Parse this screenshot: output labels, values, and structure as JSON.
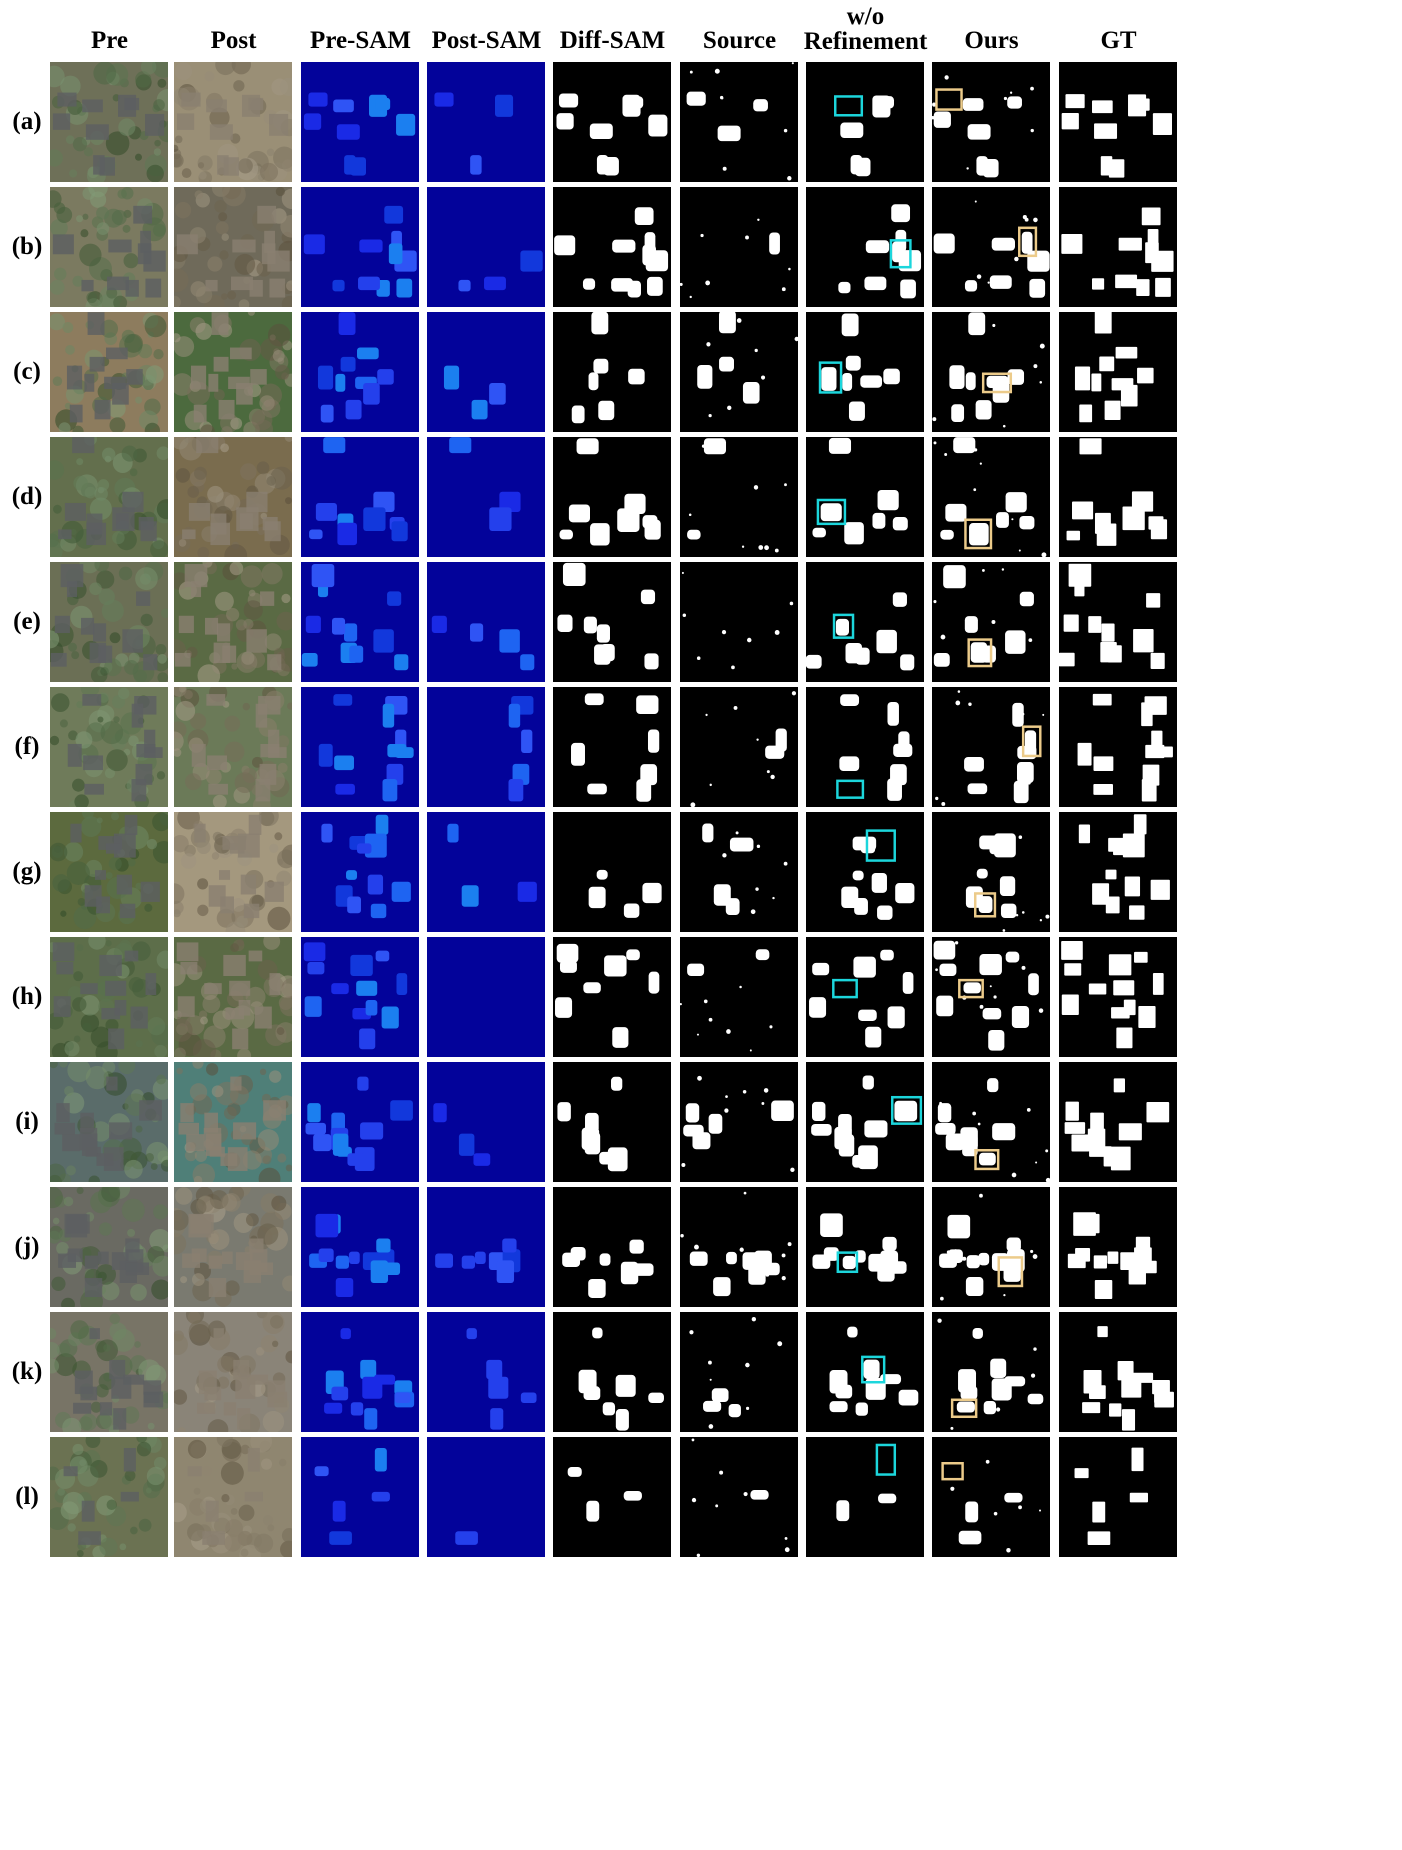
{
  "columns": [
    "Pre",
    "Post",
    "Pre-SAM",
    "Post-SAM",
    "Diff-SAM",
    "Source",
    "w/o\nRefinement",
    "Ours",
    "GT"
  ],
  "column_kinds": [
    "pre-image",
    "post-image",
    "sam-mask",
    "sam-mask",
    "binary-mask",
    "binary-mask",
    "binary-mask",
    "binary-mask",
    "binary-mask"
  ],
  "rows": [
    "(a)",
    "(b)",
    "(c)",
    "(d)",
    "(e)",
    "(f)",
    "(g)",
    "(h)",
    "(i)",
    "(j)",
    "(k)",
    "(l)"
  ],
  "colors": {
    "mask_background": "#000000",
    "mask_foreground": "#ffffff",
    "sam_background": "#03039a",
    "sam_segments": [
      "#1a2ae6",
      "#2440ec",
      "#1e64f2",
      "#1b7ff0",
      "#2f54f5",
      "#1238dc"
    ],
    "highlight_wo_refinement": "#1cd6dc",
    "highlight_ours": "#eccb8a",
    "aerial_pre": [
      "#6e7058",
      "#7b7a60",
      "#8d7c5e",
      "#636f4d",
      "#6b6f55",
      "#6f7b5a",
      "#5c6a3e",
      "#5d6e4a",
      "#5a6c6a",
      "#6a6a62",
      "#787466",
      "#6b7252"
    ],
    "aerial_post": [
      "#9a8f76",
      "#6f6a5a",
      "#4c6a3e",
      "#7a6c4e",
      "#5a6a44",
      "#6b7a58",
      "#a4987e",
      "#5a6a44",
      "#4f7f78",
      "#7a7a70",
      "#8a8478",
      "#8f8670"
    ]
  }
}
